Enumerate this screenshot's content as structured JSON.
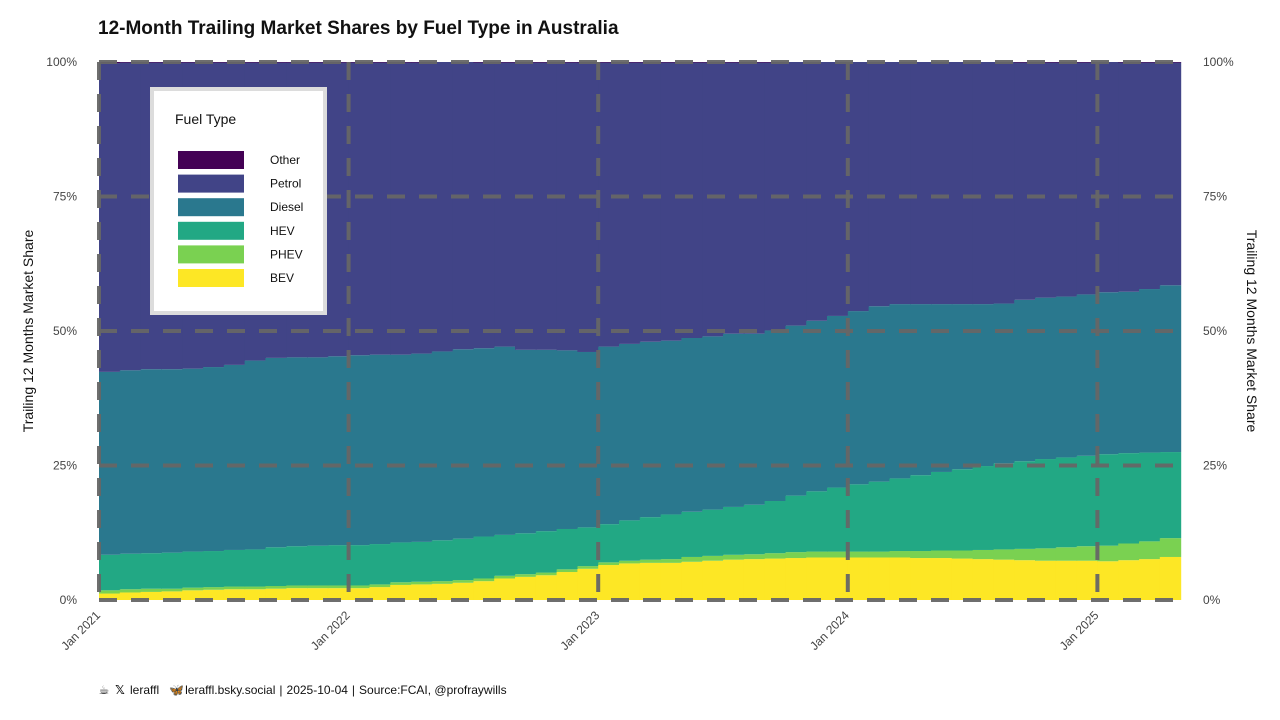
{
  "chart_data": {
    "type": "area",
    "stacked": true,
    "normalized": true,
    "title": "12-Month Trailing Market Shares by Fuel Type in Australia",
    "ylabel": "Trailing 12 Months Market Share",
    "ylabel_right": "Trailing 12 Months Market Share",
    "ylim": [
      0,
      1
    ],
    "yticks": [
      0,
      0.25,
      0.5,
      0.75,
      1
    ],
    "ytick_labels": [
      "0%",
      "25%",
      "50%",
      "75%",
      "100%"
    ],
    "xticks": [
      "2021-01",
      "2022-01",
      "2023-01",
      "2024-01",
      "2025-01"
    ],
    "xtick_labels": [
      "Jan 2021",
      "Jan 2022",
      "Jan 2023",
      "Jan 2024",
      "Jan 2025"
    ],
    "grid": true,
    "legend": {
      "title": "Fuel Type",
      "placement": "top-left",
      "entries": [
        "Other",
        "Petrol",
        "Diesel",
        "HEV",
        "PHEV",
        "BEV"
      ]
    },
    "x": [
      "2021-01",
      "2021-02",
      "2021-03",
      "2021-04",
      "2021-05",
      "2021-06",
      "2021-07",
      "2021-08",
      "2021-09",
      "2021-10",
      "2021-11",
      "2021-12",
      "2022-01",
      "2022-02",
      "2022-03",
      "2022-04",
      "2022-05",
      "2022-06",
      "2022-07",
      "2022-08",
      "2022-09",
      "2022-10",
      "2022-11",
      "2022-12",
      "2023-01",
      "2023-02",
      "2023-03",
      "2023-04",
      "2023-05",
      "2023-06",
      "2023-07",
      "2023-08",
      "2023-09",
      "2023-10",
      "2023-11",
      "2023-12",
      "2024-01",
      "2024-02",
      "2024-03",
      "2024-04",
      "2024-05",
      "2024-06",
      "2024-07",
      "2024-08",
      "2024-09",
      "2024-10",
      "2024-11",
      "2024-12",
      "2025-01",
      "2025-02",
      "2025-03",
      "2025-04"
    ],
    "series": [
      {
        "name": "BEV",
        "color": "#fde725",
        "values": [
          0.012,
          0.014,
          0.015,
          0.016,
          0.018,
          0.019,
          0.02,
          0.02,
          0.021,
          0.022,
          0.022,
          0.022,
          0.022,
          0.024,
          0.028,
          0.029,
          0.03,
          0.032,
          0.035,
          0.04,
          0.043,
          0.046,
          0.052,
          0.058,
          0.065,
          0.068,
          0.069,
          0.069,
          0.071,
          0.073,
          0.075,
          0.076,
          0.077,
          0.078,
          0.079,
          0.079,
          0.079,
          0.079,
          0.079,
          0.078,
          0.078,
          0.077,
          0.076,
          0.075,
          0.074,
          0.073,
          0.073,
          0.073,
          0.072,
          0.074,
          0.076,
          0.08
        ]
      },
      {
        "name": "PHEV",
        "color": "#7ad151",
        "values": [
          0.006,
          0.006,
          0.006,
          0.005,
          0.005,
          0.005,
          0.005,
          0.005,
          0.005,
          0.005,
          0.005,
          0.005,
          0.005,
          0.005,
          0.005,
          0.005,
          0.005,
          0.005,
          0.005,
          0.005,
          0.005,
          0.005,
          0.005,
          0.005,
          0.005,
          0.005,
          0.006,
          0.007,
          0.009,
          0.009,
          0.009,
          0.009,
          0.01,
          0.011,
          0.011,
          0.011,
          0.011,
          0.011,
          0.012,
          0.013,
          0.014,
          0.015,
          0.017,
          0.019,
          0.021,
          0.023,
          0.025,
          0.027,
          0.029,
          0.031,
          0.033,
          0.035
        ]
      },
      {
        "name": "HEV",
        "color": "#22a884",
        "values": [
          0.066,
          0.066,
          0.066,
          0.067,
          0.067,
          0.067,
          0.068,
          0.069,
          0.072,
          0.073,
          0.074,
          0.075,
          0.075,
          0.075,
          0.074,
          0.074,
          0.076,
          0.077,
          0.078,
          0.076,
          0.076,
          0.077,
          0.075,
          0.072,
          0.071,
          0.075,
          0.079,
          0.083,
          0.084,
          0.086,
          0.089,
          0.092,
          0.097,
          0.105,
          0.112,
          0.119,
          0.125,
          0.13,
          0.135,
          0.141,
          0.146,
          0.151,
          0.156,
          0.16,
          0.163,
          0.166,
          0.167,
          0.168,
          0.17,
          0.168,
          0.165,
          0.16
        ]
      },
      {
        "name": "Diesel",
        "color": "#2a788e",
        "values": [
          0.34,
          0.341,
          0.342,
          0.341,
          0.34,
          0.342,
          0.344,
          0.351,
          0.352,
          0.351,
          0.35,
          0.351,
          0.353,
          0.352,
          0.349,
          0.35,
          0.351,
          0.352,
          0.35,
          0.35,
          0.341,
          0.337,
          0.332,
          0.326,
          0.33,
          0.328,
          0.326,
          0.323,
          0.323,
          0.322,
          0.322,
          0.318,
          0.317,
          0.316,
          0.317,
          0.319,
          0.322,
          0.326,
          0.324,
          0.318,
          0.312,
          0.307,
          0.301,
          0.297,
          0.3,
          0.3,
          0.299,
          0.3,
          0.301,
          0.3,
          0.304,
          0.31
        ]
      },
      {
        "name": "Petrol",
        "color": "#414487",
        "values": [
          0.574,
          0.572,
          0.57,
          0.57,
          0.569,
          0.566,
          0.562,
          0.554,
          0.549,
          0.548,
          0.548,
          0.546,
          0.544,
          0.543,
          0.543,
          0.541,
          0.538,
          0.534,
          0.531,
          0.528,
          0.534,
          0.534,
          0.535,
          0.538,
          0.528,
          0.523,
          0.519,
          0.517,
          0.512,
          0.509,
          0.504,
          0.504,
          0.498,
          0.49,
          0.481,
          0.472,
          0.463,
          0.454,
          0.45,
          0.45,
          0.45,
          0.45,
          0.45,
          0.449,
          0.441,
          0.437,
          0.435,
          0.431,
          0.428,
          0.426,
          0.421,
          0.414
        ]
      },
      {
        "name": "Other",
        "color": "#440154",
        "values": [
          0.002,
          0.001,
          0.001,
          0.001,
          0.001,
          0.001,
          0.001,
          0.001,
          0.001,
          0.001,
          0.001,
          0.001,
          0.001,
          0.001,
          0.001,
          0.001,
          0.0,
          0.0,
          0.001,
          0.001,
          0.001,
          0.001,
          0.001,
          0.001,
          0.001,
          0.001,
          0.001,
          0.001,
          0.001,
          0.001,
          0.001,
          0.001,
          0.001,
          0.0,
          0.0,
          0.0,
          0.0,
          0.0,
          0.0,
          0.0,
          0.0,
          0.0,
          0.0,
          0.0,
          0.001,
          0.001,
          0.001,
          0.001,
          0.0,
          0.001,
          0.001,
          0.001
        ]
      }
    ]
  },
  "footer": {
    "handle_x": "leraffl",
    "handle_bsky": "leraffl.bsky.social",
    "date": "2025-10-04",
    "source": "Source:FCAI, @profraywills"
  }
}
